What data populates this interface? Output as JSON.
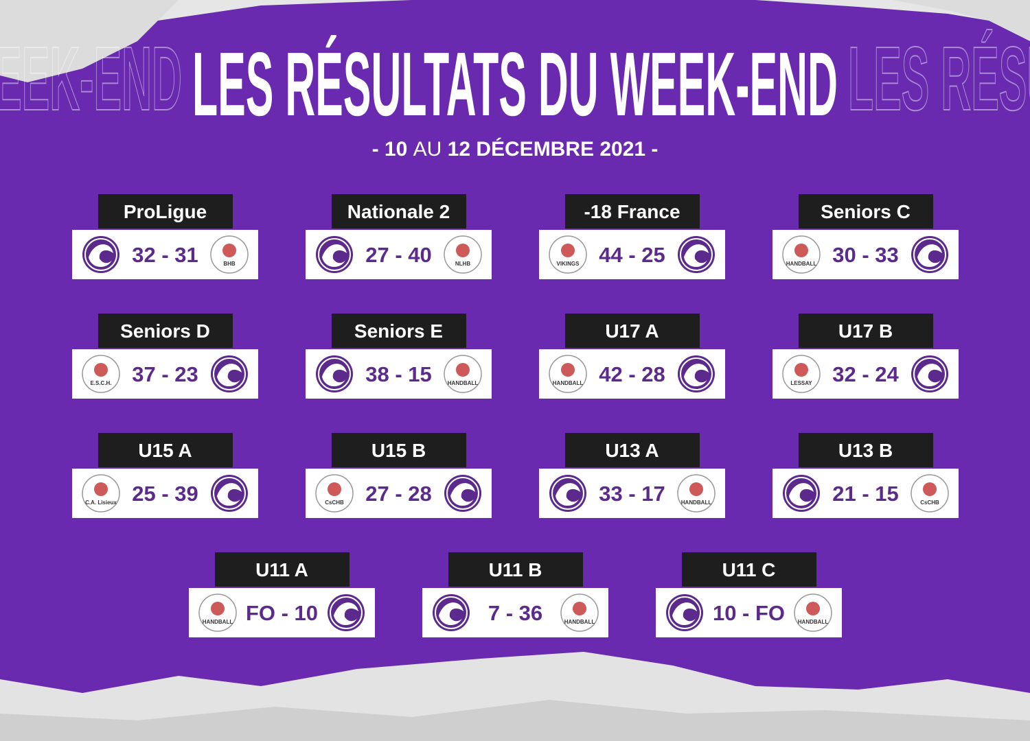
{
  "title": "LES RÉSULTATS DU WEEK-END",
  "date": {
    "from": "- 10",
    "connector": "AU",
    "to": "12 DÉCEMBRE 2021 -"
  },
  "matches": [
    {
      "category": "ProLigue",
      "score": "32 - 31",
      "club_side": "left",
      "opponent_logo": "BHB"
    },
    {
      "category": "Nationale 2",
      "score": "27 - 40",
      "club_side": "left",
      "opponent_logo": "NLHB"
    },
    {
      "category": "-18 France",
      "score": "44 - 25",
      "club_side": "right",
      "opponent_logo": "VIKINGS"
    },
    {
      "category": "Seniors C",
      "score": "30 - 33",
      "club_side": "right",
      "opponent_logo": "HANDBALL"
    },
    {
      "category": "Seniors D",
      "score": "37 - 23",
      "club_side": "right",
      "opponent_logo": "E.S.C.H."
    },
    {
      "category": "Seniors E",
      "score": "38 - 15",
      "club_side": "left",
      "opponent_logo": "HANDBALL"
    },
    {
      "category": "U17 A",
      "score": "42 - 28",
      "club_side": "right",
      "opponent_logo": "HANDBALL"
    },
    {
      "category": "U17 B",
      "score": "32 - 24",
      "club_side": "right",
      "opponent_logo": "LESSAY"
    },
    {
      "category": "U15 A",
      "score": "25 - 39",
      "club_side": "right",
      "opponent_logo": "C.A. Lisieux"
    },
    {
      "category": "U15 B",
      "score": "27 - 28",
      "club_side": "right",
      "opponent_logo": "CsCHB"
    },
    {
      "category": "U13 A",
      "score": "33 - 17",
      "club_side": "left",
      "opponent_logo": "HANDBALL"
    },
    {
      "category": "U13 B",
      "score": "21 - 15",
      "club_side": "left",
      "opponent_logo": "CsCHB"
    },
    {
      "category": "U11 A",
      "score": "FO - 10",
      "club_side": "right",
      "opponent_logo": "HANDBALL"
    },
    {
      "category": "U11 B",
      "score": "7 - 36",
      "club_side": "left",
      "opponent_logo": "HANDBALL"
    },
    {
      "category": "U11 C",
      "score": "10 - FO",
      "club_side": "left",
      "opponent_logo": "HANDBALL"
    }
  ]
}
